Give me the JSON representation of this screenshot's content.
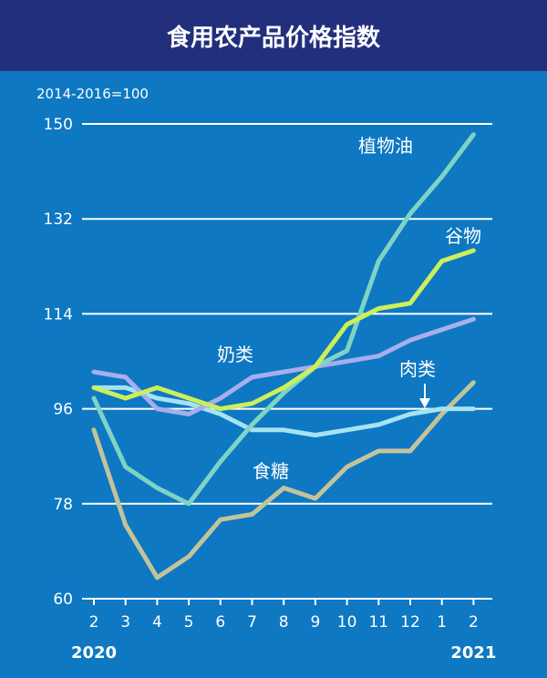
{
  "chart_data": {
    "type": "line",
    "title": "食用农产品价格指数",
    "base_note": "2014-2016=100",
    "x": [
      "2",
      "3",
      "4",
      "5",
      "6",
      "7",
      "8",
      "9",
      "10",
      "11",
      "12",
      "1",
      "2"
    ],
    "year_labels": [
      {
        "label": "2020",
        "at": 0
      },
      {
        "label": "2021",
        "at": 12
      }
    ],
    "y_ticks": [
      "60",
      "78",
      "96",
      "114",
      "132",
      "150"
    ],
    "ylim": [
      60,
      150
    ],
    "grid": true,
    "series": [
      {
        "name": "植物油",
        "color": "#7fd3c4",
        "values": [
          98,
          85,
          81,
          78,
          86,
          93,
          99,
          104,
          107,
          124,
          133,
          140,
          148
        ]
      },
      {
        "name": "谷物",
        "color": "#ccef5a",
        "values": [
          100,
          98,
          100,
          98,
          96,
          97,
          100,
          104,
          112,
          115,
          116,
          124,
          126
        ]
      },
      {
        "name": "奶类",
        "color": "#a7aeec",
        "values": [
          103,
          102,
          96,
          95,
          98,
          102,
          103,
          104,
          105,
          106,
          109,
          111,
          113
        ]
      },
      {
        "name": "肉类",
        "color": "#a6e3f2",
        "values": [
          100,
          100,
          98,
          97,
          95,
          92,
          92,
          91,
          92,
          93,
          95,
          96,
          96
        ]
      },
      {
        "name": "食糖",
        "color": "#c3c39a",
        "values": [
          92,
          74,
          64,
          68,
          75,
          76,
          81,
          79,
          85,
          88,
          88,
          95,
          101
        ]
      }
    ]
  }
}
